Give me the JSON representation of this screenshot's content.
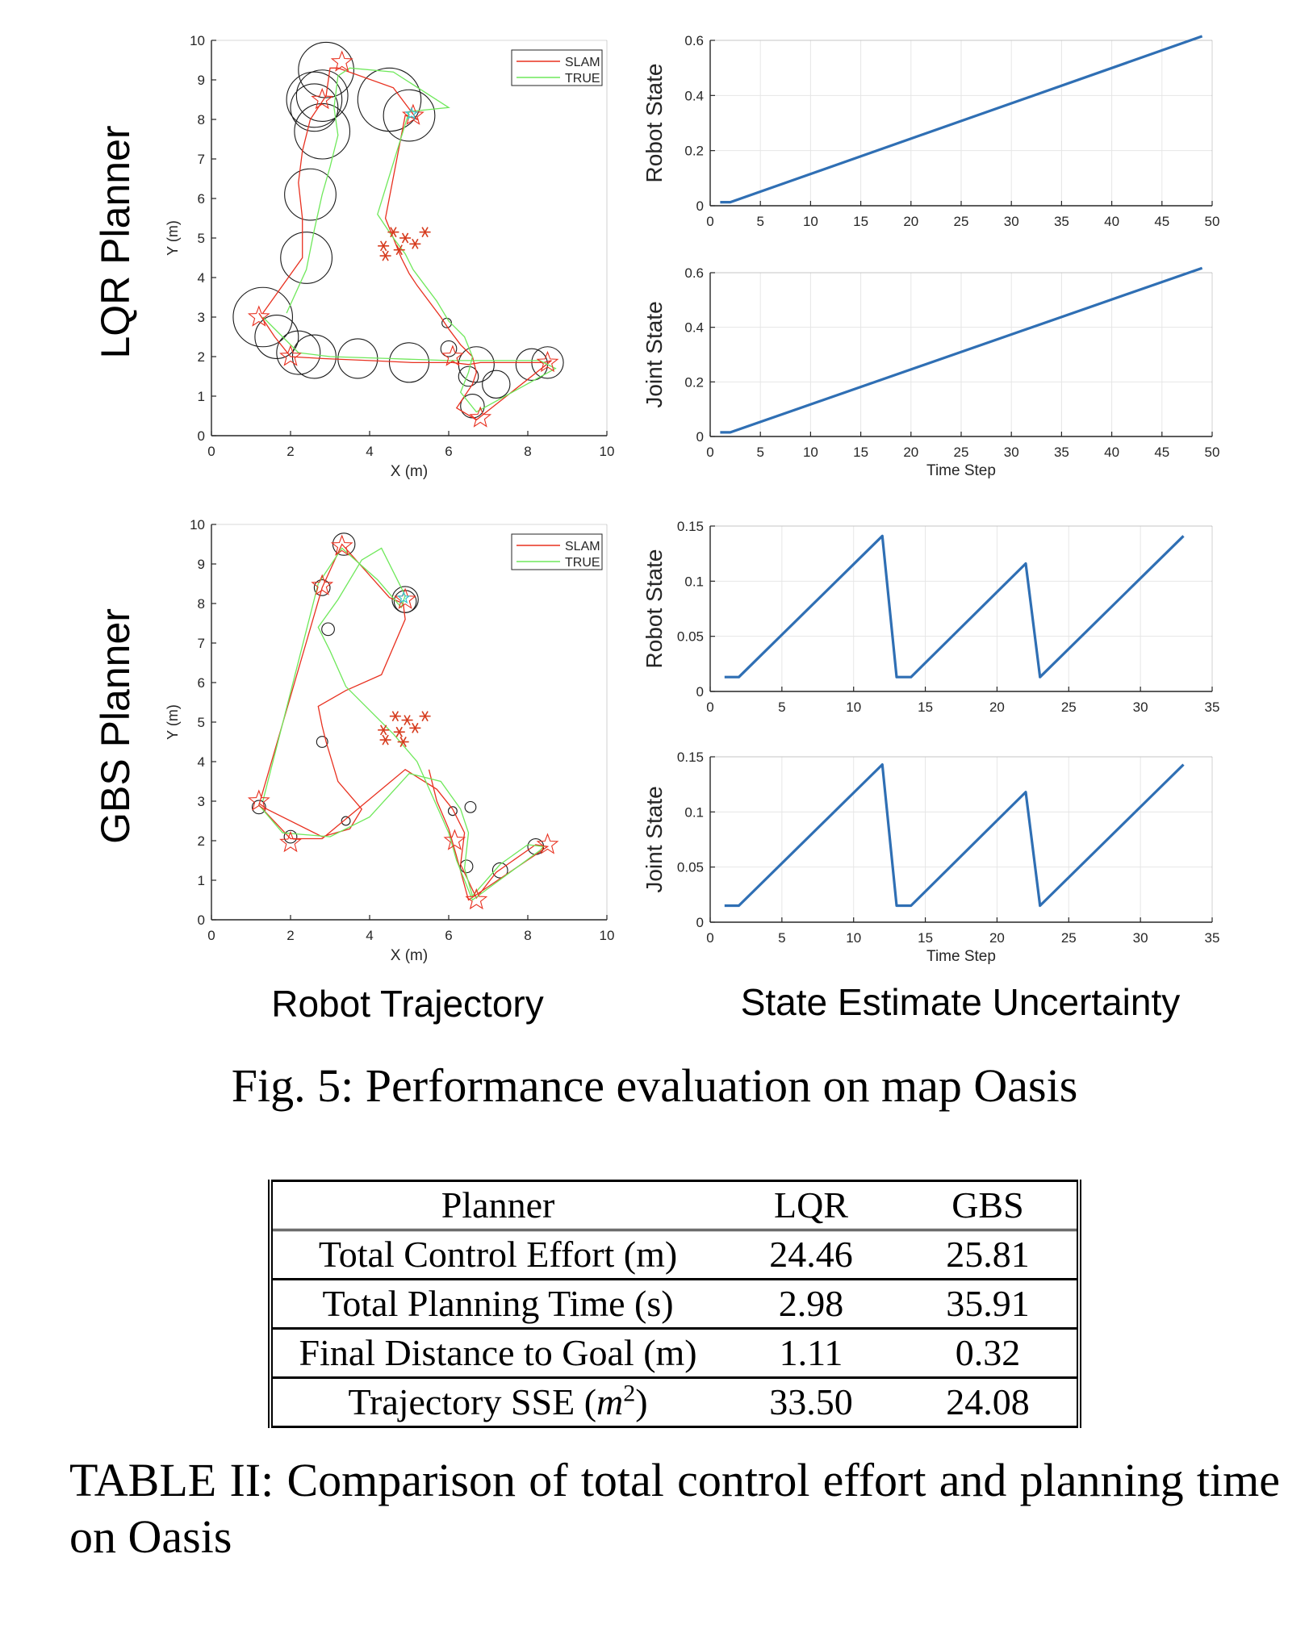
{
  "figure": {
    "row_labels": [
      "LQR Planner",
      "GBS Planner"
    ],
    "column_titles": [
      "Robot Trajectory",
      "State Estimate Uncertainty"
    ],
    "caption": "Fig. 5: Performance evaluation on map Oasis",
    "legend": [
      "SLAM",
      "TRUE"
    ],
    "colors": {
      "slam": "#e8301f",
      "true": "#6fe85b",
      "uncertainty": "#2f6fb4",
      "landmark": "#d63a1c",
      "goal_marker": "#33c4d0"
    }
  },
  "chart_data": [
    {
      "id": "lqr_trajectory",
      "type": "line",
      "title": "",
      "xlabel": "X (m)",
      "ylabel": "Y (m)",
      "xlim": [
        0,
        10
      ],
      "ylim": [
        0,
        10
      ],
      "xticks": [
        "0",
        "2",
        "4",
        "6",
        "8",
        "10"
      ],
      "yticks": [
        "0",
        "1",
        "2",
        "3",
        "4",
        "5",
        "6",
        "7",
        "8",
        "9",
        "10"
      ],
      "series": [
        {
          "name": "SLAM",
          "x": [
            1.2,
            1.6,
            2.0,
            2.8,
            4.0,
            5.1,
            6.1,
            6.5,
            6.8,
            8.4,
            8.6,
            6.7,
            6.2,
            6.4,
            6.6,
            6.7,
            6.6,
            6.3,
            6.0,
            5.8,
            5.5,
            5.2,
            5.0,
            4.8,
            4.6,
            4.4,
            4.9,
            5.2,
            4.6,
            3.2,
            3.0,
            2.9,
            2.5,
            2.3,
            2.2,
            2.3,
            2.3,
            1.3
          ],
          "y": [
            3.1,
            2.5,
            2.0,
            1.95,
            1.9,
            1.85,
            1.85,
            1.8,
            1.85,
            1.85,
            1.9,
            0.4,
            0.7,
            1.0,
            1.3,
            1.6,
            2.0,
            2.3,
            2.7,
            3.0,
            3.4,
            3.8,
            4.1,
            4.5,
            5.0,
            5.5,
            8.1,
            8.0,
            8.8,
            9.3,
            9.3,
            8.6,
            8.0,
            7.2,
            6.4,
            5.5,
            4.5,
            3.1
          ]
        },
        {
          "name": "TRUE",
          "x": [
            1.3,
            2.2,
            3.0,
            4.5,
            6.0,
            6.8,
            8.3,
            8.7,
            6.7,
            6.3,
            6.5,
            6.6,
            6.4,
            6.0,
            5.7,
            5.4,
            5.1,
            4.9,
            4.6,
            4.2,
            5.0,
            6.0,
            4.6,
            3.5,
            3.2,
            3.1,
            3.2,
            3.0,
            2.8,
            2.6,
            2.4,
            1.9
          ],
          "y": [
            3.0,
            2.1,
            2.0,
            1.95,
            1.9,
            1.9,
            1.9,
            1.7,
            0.6,
            1.1,
            1.6,
            2.0,
            2.5,
            2.9,
            3.4,
            3.8,
            4.2,
            4.6,
            5.0,
            5.6,
            8.2,
            8.3,
            9.2,
            9.3,
            9.1,
            8.3,
            7.6,
            6.8,
            6.1,
            5.2,
            4.2,
            3.1
          ]
        }
      ],
      "circles": [
        [
          2.9,
          9.25,
          0.7
        ],
        [
          2.8,
          8.6,
          0.65
        ],
        [
          2.6,
          8.3,
          0.6
        ],
        [
          2.6,
          8.5,
          0.7
        ],
        [
          2.8,
          7.7,
          0.7
        ],
        [
          4.5,
          8.5,
          0.8
        ],
        [
          5.0,
          8.1,
          0.65
        ],
        [
          2.5,
          6.1,
          0.65
        ],
        [
          2.4,
          4.5,
          0.65
        ],
        [
          1.3,
          3.0,
          0.75
        ],
        [
          1.65,
          2.5,
          0.55
        ],
        [
          2.2,
          2.1,
          0.55
        ],
        [
          2.6,
          2.0,
          0.55
        ],
        [
          3.7,
          1.95,
          0.5
        ],
        [
          5.0,
          1.85,
          0.5
        ],
        [
          6.0,
          2.2,
          0.2
        ],
        [
          5.95,
          2.85,
          0.12
        ],
        [
          6.7,
          1.8,
          0.45
        ],
        [
          6.5,
          1.5,
          0.25
        ],
        [
          7.2,
          1.3,
          0.35
        ],
        [
          6.6,
          0.75,
          0.3
        ],
        [
          8.1,
          1.8,
          0.4
        ],
        [
          8.5,
          1.85,
          0.4
        ]
      ],
      "stars": [
        [
          3.3,
          9.45
        ],
        [
          5.1,
          8.1
        ],
        [
          2.8,
          8.5
        ],
        [
          1.2,
          3.0
        ],
        [
          2.0,
          2.0
        ],
        [
          6.8,
          0.45
        ],
        [
          8.5,
          1.85
        ],
        [
          6.1,
          2.0
        ]
      ],
      "landmarks": [
        [
          4.6,
          5.15
        ],
        [
          4.9,
          5.0
        ],
        [
          5.4,
          5.15
        ],
        [
          4.35,
          4.8
        ],
        [
          4.75,
          4.7
        ],
        [
          5.15,
          4.85
        ],
        [
          4.4,
          4.55
        ]
      ]
    },
    {
      "id": "gbs_trajectory",
      "type": "line",
      "title": "",
      "xlabel": "X (m)",
      "ylabel": "Y (m)",
      "xlim": [
        0,
        10
      ],
      "ylim": [
        0,
        10
      ],
      "xticks": [
        "0",
        "2",
        "4",
        "6",
        "8",
        "10"
      ],
      "yticks": [
        "0",
        "1",
        "2",
        "3",
        "4",
        "5",
        "6",
        "7",
        "8",
        "9",
        "10"
      ],
      "series": [
        {
          "name": "SLAM",
          "x": [
            1.2,
            1.4,
            2.8,
            3.5,
            3.8,
            3.2,
            2.9,
            2.8,
            2.7,
            3.4,
            4.3,
            4.9,
            4.85,
            4.5,
            3.3,
            2.8,
            1.2,
            2.0,
            2.8,
            4.9,
            5.7,
            6.1,
            6.4,
            6.3,
            6.7,
            7.2,
            8.2,
            8.5,
            6.5,
            6.2,
            6.0,
            5.7,
            5.5
          ],
          "y": [
            2.95,
            2.8,
            2.1,
            2.3,
            2.8,
            3.5,
            4.5,
            4.9,
            5.4,
            5.8,
            6.2,
            7.6,
            8.0,
            8.15,
            9.5,
            8.4,
            2.9,
            2.05,
            2.05,
            3.8,
            3.3,
            2.8,
            2.2,
            1.4,
            0.55,
            1.2,
            1.9,
            1.85,
            0.5,
            1.6,
            2.3,
            3.0,
            3.8
          ],
          "path": "gbs_slam"
        },
        {
          "name": "TRUE",
          "x": [
            1.2,
            1.8,
            3.0,
            4.0,
            5.0,
            5.8,
            6.3,
            6.5,
            6.4,
            6.6,
            7.3,
            8.0,
            8.4,
            8.3,
            6.6,
            6.2,
            6.0,
            5.6,
            5.2,
            4.6,
            4.0,
            3.4,
            3.0,
            2.7,
            3.2,
            3.8,
            4.3,
            4.7,
            4.9,
            4.8,
            4.2,
            3.3,
            2.7,
            1.3
          ],
          "y": [
            2.9,
            2.2,
            2.1,
            2.6,
            3.7,
            3.5,
            2.8,
            2.2,
            1.3,
            0.6,
            1.4,
            1.9,
            1.85,
            1.75,
            0.5,
            1.5,
            2.2,
            3.1,
            4.0,
            4.7,
            5.3,
            5.9,
            6.8,
            7.4,
            8.1,
            9.1,
            9.4,
            8.6,
            8.2,
            7.9,
            8.6,
            9.4,
            8.5,
            3.0
          ]
        }
      ],
      "circles": [
        [
          3.35,
          9.5,
          0.28
        ],
        [
          4.9,
          8.1,
          0.33
        ],
        [
          4.9,
          8.05,
          0.28
        ],
        [
          2.8,
          8.4,
          0.2
        ],
        [
          2.95,
          7.35,
          0.16
        ],
        [
          2.8,
          4.5,
          0.14
        ],
        [
          1.2,
          2.85,
          0.17
        ],
        [
          2.0,
          2.1,
          0.16
        ],
        [
          3.4,
          2.5,
          0.11
        ],
        [
          6.1,
          2.75,
          0.11
        ],
        [
          6.55,
          2.85,
          0.14
        ],
        [
          6.45,
          1.35,
          0.16
        ],
        [
          7.3,
          1.25,
          0.19
        ],
        [
          8.2,
          1.85,
          0.2
        ]
      ],
      "stars": [
        [
          3.3,
          9.45
        ],
        [
          4.9,
          8.1
        ],
        [
          2.8,
          8.45
        ],
        [
          1.2,
          3.0
        ],
        [
          2.0,
          1.95
        ],
        [
          6.7,
          0.5
        ],
        [
          8.5,
          1.9
        ],
        [
          6.15,
          2.0
        ]
      ],
      "landmarks": [
        [
          4.65,
          5.15
        ],
        [
          4.95,
          5.05
        ],
        [
          5.4,
          5.15
        ],
        [
          4.35,
          4.8
        ],
        [
          4.75,
          4.75
        ],
        [
          5.15,
          4.85
        ],
        [
          4.4,
          4.55
        ],
        [
          4.85,
          4.5
        ]
      ]
    },
    {
      "id": "lqr_robot_state",
      "type": "line",
      "title": "",
      "xlabel": "",
      "ylabel": "Robot State",
      "xlim": [
        0,
        50
      ],
      "ylim": [
        0,
        0.6
      ],
      "xticks": [
        "0",
        "5",
        "10",
        "15",
        "20",
        "25",
        "30",
        "35",
        "40",
        "45",
        "50"
      ],
      "yticks": [
        "0",
        "0.2",
        "0.4",
        "0.6"
      ],
      "series": [
        {
          "name": "uncertainty",
          "x": [
            1,
            2,
            49
          ],
          "y": [
            0.013,
            0.013,
            0.615
          ]
        }
      ]
    },
    {
      "id": "lqr_joint_state",
      "type": "line",
      "title": "",
      "xlabel": "Time Step",
      "ylabel": "Joint State",
      "xlim": [
        0,
        50
      ],
      "ylim": [
        0,
        0.6
      ],
      "xticks": [
        "0",
        "5",
        "10",
        "15",
        "20",
        "25",
        "30",
        "35",
        "40",
        "45",
        "50"
      ],
      "yticks": [
        "0",
        "0.2",
        "0.4",
        "0.6"
      ],
      "series": [
        {
          "name": "uncertainty",
          "x": [
            1,
            2,
            49
          ],
          "y": [
            0.015,
            0.015,
            0.617
          ]
        }
      ]
    },
    {
      "id": "gbs_robot_state",
      "type": "line",
      "title": "",
      "xlabel": "",
      "ylabel": "Robot State",
      "xlim": [
        0,
        35
      ],
      "ylim": [
        0,
        0.15
      ],
      "xticks": [
        "0",
        "5",
        "10",
        "15",
        "20",
        "25",
        "30",
        "35"
      ],
      "yticks": [
        "0",
        "0.05",
        "0.1",
        "0.15"
      ],
      "series": [
        {
          "name": "uncertainty",
          "x": [
            1,
            2,
            12,
            13,
            14,
            22,
            23,
            33
          ],
          "y": [
            0.013,
            0.013,
            0.141,
            0.013,
            0.013,
            0.116,
            0.013,
            0.141
          ]
        }
      ]
    },
    {
      "id": "gbs_joint_state",
      "type": "line",
      "title": "",
      "xlabel": "Time Step",
      "ylabel": "Joint State",
      "xlim": [
        0,
        35
      ],
      "ylim": [
        0,
        0.15
      ],
      "xticks": [
        "0",
        "5",
        "10",
        "15",
        "20",
        "25",
        "30",
        "35"
      ],
      "yticks": [
        "0",
        "0.05",
        "0.1",
        "0.15"
      ],
      "series": [
        {
          "name": "uncertainty",
          "x": [
            1,
            2,
            12,
            13,
            14,
            22,
            23,
            33
          ],
          "y": [
            0.015,
            0.015,
            0.143,
            0.015,
            0.015,
            0.118,
            0.015,
            0.143
          ]
        }
      ]
    }
  ],
  "table": {
    "header": [
      "Planner",
      "LQR",
      "GBS"
    ],
    "rows": [
      {
        "metric": "Total Control Effort (m)",
        "lqr": "24.46",
        "gbs": "25.81"
      },
      {
        "metric": "Total Planning Time (s)",
        "lqr": "2.98",
        "gbs": "35.91"
      },
      {
        "metric": "Final Distance to Goal (m)",
        "lqr": "1.11",
        "gbs": "0.32"
      },
      {
        "metric_prefix": "Trajectory SSE (",
        "metric_var": "m",
        "metric_sup": "2",
        "metric_suffix": ")",
        "lqr": "33.50",
        "gbs": "24.08"
      }
    ],
    "caption": "TABLE II: Comparison of total control effort and planning time on Oasis"
  }
}
